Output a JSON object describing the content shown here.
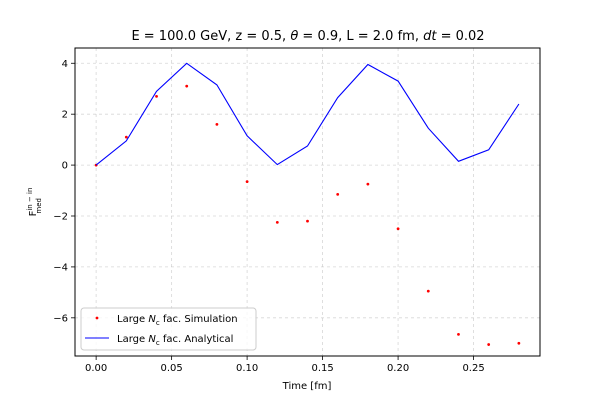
{
  "chart_data": {
    "type": "line",
    "title_parts": {
      "a": "E = 100.0 GeV, z = 0.5, ",
      "theta": "θ",
      "b": " = 0.9, L = 2.0 fm, ",
      "dt": "dt",
      "c": " = 0.02"
    },
    "xlabel": "Time [fm]",
    "ylabel": {
      "base": "F",
      "sup": "in − in",
      "sub": "med"
    },
    "xlim": [
      -0.014,
      0.294
    ],
    "ylim": [
      -7.5,
      4.6
    ],
    "xticks": [
      0.0,
      0.05,
      0.1,
      0.15,
      0.2,
      0.25
    ],
    "xtick_labels": [
      "0.00",
      "0.05",
      "0.10",
      "0.15",
      "0.20",
      "0.25"
    ],
    "yticks": [
      -6,
      -4,
      -2,
      0,
      2,
      4
    ],
    "ytick_labels": [
      "−6",
      "−4",
      "−2",
      "0",
      "2",
      "4"
    ],
    "grid": true,
    "legend_position": "lower-left",
    "series": [
      {
        "name_parts": {
          "pre": "Large ",
          "n": "N",
          "sub": "c",
          "post": " fac. Simulation"
        },
        "kind": "scatter",
        "color": "#ff0000",
        "x": [
          0.0,
          0.02,
          0.04,
          0.06,
          0.08,
          0.1,
          0.12,
          0.14,
          0.16,
          0.18,
          0.2,
          0.22,
          0.24,
          0.26,
          0.28
        ],
        "y": [
          0.0,
          1.1,
          2.7,
          3.1,
          1.6,
          -0.65,
          -2.25,
          -2.2,
          -1.15,
          -0.75,
          -2.5,
          -4.95,
          -6.65,
          -7.05,
          -7.0
        ]
      },
      {
        "name_parts": {
          "pre": "Large ",
          "n": "N",
          "sub": "c",
          "post": " fac. Analytical"
        },
        "kind": "line",
        "color": "#0000ff",
        "x": [
          0.0,
          0.02,
          0.04,
          0.06,
          0.08,
          0.1,
          0.12,
          0.14,
          0.16,
          0.18,
          0.2,
          0.22,
          0.24,
          0.26,
          0.28
        ],
        "y": [
          0.0,
          0.95,
          2.9,
          4.0,
          3.15,
          1.15,
          0.02,
          0.75,
          2.65,
          3.95,
          3.3,
          1.45,
          0.15,
          0.6,
          2.4
        ]
      }
    ]
  }
}
